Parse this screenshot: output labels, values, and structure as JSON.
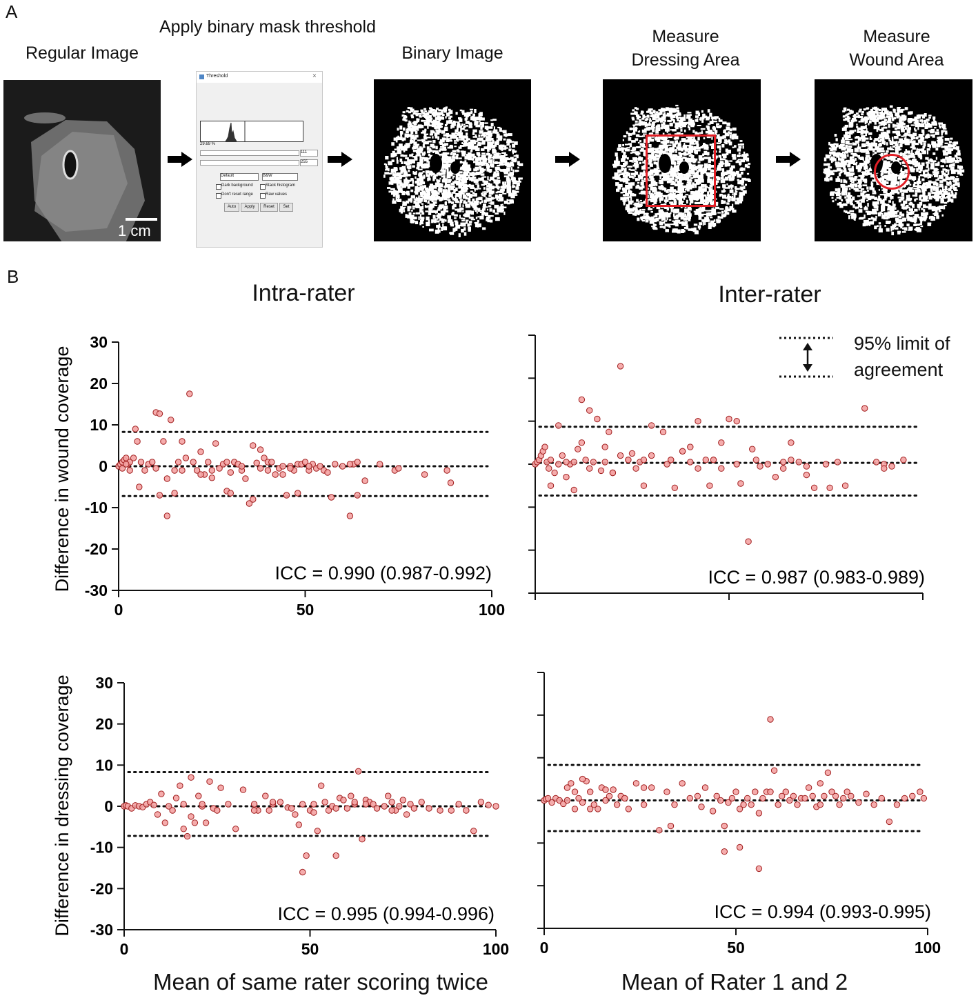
{
  "panel_a": {
    "letter": "A",
    "regular_image_title": "Regular Image",
    "threshold_title": "Apply binary mask threshold",
    "binary_image_title": "Binary Image",
    "dressing_title_line1": "Measure",
    "dressing_title_line2": "Dressing Area",
    "wound_title_line1": "Measure",
    "wound_title_line2": "Wound Area",
    "scale_bar_label": "1 cm",
    "threshold_dialog": {
      "window_title": "Threshold",
      "close_glyph": "×",
      "percent": "29.69 %",
      "min_value": "111",
      "max_value": "255",
      "method_select": "Default",
      "mode_select": "B&W",
      "check_dark_background": "Dark background",
      "check_stack_histogram": "Stack histogram",
      "check_dont_reset_range": "Don't reset range",
      "check_raw_values": "Raw values",
      "button_auto": "Auto",
      "button_apply": "Apply",
      "button_reset": "Reset",
      "button_set": "Set"
    },
    "colors": {
      "dressing_outline": "#e21f26",
      "wound_outline": "#e21f26"
    }
  },
  "panel_b": {
    "letter": "B",
    "col_left_title": "Intra-rater",
    "col_right_title": "Inter-rater",
    "ylabel_top": "Difference in wound coverage",
    "ylabel_bottom": "Difference in dressing coverage",
    "xlabel_left": "Mean of same rater scoring twice",
    "xlabel_right": "Mean of Rater 1 and 2",
    "legend_line1": "95% limit of",
    "legend_line2": "agreement",
    "colors": {
      "point_fill": "#f4a3a3",
      "point_stroke": "#a01d1d",
      "line": "#111111"
    }
  },
  "chart_data": [
    {
      "type": "scatter",
      "panel": "intra-rater wound",
      "ylabel": "Difference in wound coverage",
      "xlim": [
        0,
        100
      ],
      "ylim": [
        -30,
        30
      ],
      "xticks": [
        "0",
        "50",
        "100"
      ],
      "yticks": [
        "30",
        "20",
        "10",
        "0",
        "-10",
        "-20",
        "-30"
      ],
      "mean_line": 0,
      "upper_loa": 8.3,
      "lower_loa": -7.2,
      "annotation": "ICC = 0.990 (0.987-0.992)",
      "x": [
        0,
        0.5,
        1,
        1.5,
        2,
        2.5,
        3,
        1,
        2,
        3,
        4,
        4.5,
        5,
        5.5,
        6,
        7,
        8,
        9,
        10,
        11,
        12,
        13,
        14,
        15,
        16,
        17,
        18,
        19,
        20,
        21,
        22,
        23,
        24,
        25,
        26,
        27,
        28,
        29,
        30,
        31,
        32,
        33,
        34,
        35,
        36,
        37,
        38,
        39,
        40,
        41,
        42,
        43,
        44,
        45,
        46,
        47,
        48,
        49,
        50,
        51,
        52,
        53,
        54,
        55,
        57,
        58,
        60,
        62,
        63,
        64,
        66,
        70,
        74,
        75,
        82,
        88,
        89,
        10,
        11,
        13,
        17,
        15,
        22,
        25,
        29,
        30,
        33,
        38,
        40,
        36,
        44,
        46,
        48,
        51,
        56,
        62,
        64
      ],
      "y": [
        0,
        0.5,
        1,
        1.5,
        2,
        0.5,
        1,
        -0.5,
        0.5,
        -1,
        2,
        9,
        6,
        -5,
        1,
        -1,
        0.5,
        1,
        13,
        12.7,
        6,
        -3,
        11.2,
        -1,
        1,
        -1,
        2,
        17.5,
        1,
        -1,
        3.5,
        -2,
        1,
        -1,
        5.5,
        -0.5,
        0.5,
        -6,
        -6.5,
        1,
        0.5,
        -1,
        -3,
        -9,
        -8,
        0.8,
        4,
        2,
        1,
        1,
        -2,
        -0.5,
        0,
        -7,
        0,
        -1,
        0.5,
        0.5,
        1,
        -1,
        0.5,
        -0.5,
        0,
        -1,
        -7.5,
        0.5,
        0,
        -12,
        0.5,
        -7,
        -3.5,
        0.5,
        -1,
        -0.5,
        -2,
        -1,
        -4,
        -0.5,
        -7,
        -12,
        6,
        -6.5,
        -2,
        -2.8,
        1,
        -1.5,
        0,
        -0.5,
        -1,
        5,
        -2,
        -0.5,
        -6.5,
        0,
        -1.5,
        0.5,
        1
      ]
    },
    {
      "type": "scatter",
      "panel": "inter-rater wound",
      "xlim": [
        0,
        100
      ],
      "ylim": [
        -30,
        30
      ],
      "xticks": [],
      "yticks": [],
      "mean_line": 0.3,
      "upper_loa": 8.7,
      "lower_loa": -7.3,
      "annotation": "ICC = 0.987 (0.983-0.989)",
      "x": [
        0,
        0.5,
        1,
        1.5,
        2,
        2.5,
        3,
        3.5,
        4,
        5,
        6,
        7,
        8,
        9,
        10,
        11,
        12,
        13,
        14,
        15,
        16,
        18,
        19,
        20,
        22,
        24,
        25,
        27,
        28,
        30,
        33,
        35,
        36,
        38,
        40,
        42,
        44,
        45,
        46,
        48,
        50,
        52,
        53,
        55,
        57,
        60,
        62,
        64,
        66,
        68,
        70,
        72,
        75,
        78,
        80,
        85,
        88,
        90,
        92,
        95,
        6,
        10,
        12,
        14,
        18,
        20,
        22,
        26,
        28,
        30,
        35,
        38,
        42,
        46,
        48,
        56,
        58,
        64,
        66,
        70,
        76,
        90,
        4,
        8,
        17,
        24,
        34,
        40,
        52
      ],
      "y": [
        0,
        0.5,
        1,
        2,
        3,
        4,
        0.5,
        -1,
        1,
        -2,
        9,
        2,
        -3,
        0,
        -6,
        3.5,
        15,
        1,
        12.5,
        0.5,
        10.5,
        0.5,
        7.5,
        -2,
        22.8,
        1,
        2.5,
        0.5,
        -5,
        9,
        7.5,
        1,
        -5.5,
        3,
        4,
        10,
        1,
        -5,
        1,
        5,
        10.5,
        10,
        -4.5,
        -18,
        1,
        0,
        -3,
        -1,
        5,
        0.5,
        -2.5,
        -5.5,
        0,
        0.5,
        -5,
        13,
        0.5,
        0,
        -0.5,
        1,
        0,
        0.5,
        5,
        -1,
        4,
        -2,
        2,
        -1,
        1,
        2,
        1,
        3,
        -1,
        1,
        -1,
        3.5,
        -0.5,
        0.5,
        1,
        -0.5,
        -5.5,
        -1,
        -5,
        0.5,
        -1.5,
        1,
        0,
        0.5,
        0
      ]
    },
    {
      "type": "scatter",
      "panel": "intra-rater dressing",
      "ylabel": "Difference in dressing coverage",
      "xlabel": "Mean of same rater scoring twice",
      "xlim": [
        0,
        100
      ],
      "ylim": [
        -30,
        30
      ],
      "xticks": [
        "0",
        "50",
        "100"
      ],
      "yticks": [
        "30",
        "20",
        "10",
        "0",
        "-10",
        "-20",
        "-30"
      ],
      "mean_line": 0,
      "upper_loa": 8.3,
      "lower_loa": -7.2,
      "annotation": "ICC = 0.995 (0.994-0.996)",
      "x": [
        0,
        0.5,
        1,
        2,
        3,
        4,
        5,
        6,
        7,
        8,
        9,
        10,
        11,
        12,
        13,
        14,
        15,
        16,
        17,
        18,
        19,
        20,
        21,
        22,
        23,
        24,
        25,
        26,
        28,
        30,
        32,
        35,
        36,
        38,
        39,
        40,
        42,
        44,
        45,
        46,
        47,
        48,
        49,
        50,
        51,
        52,
        53,
        54,
        55,
        56,
        57,
        58,
        59,
        60,
        61,
        62,
        63,
        64,
        65,
        66,
        67,
        68,
        70,
        71,
        72,
        73,
        74,
        75,
        76,
        77,
        78,
        80,
        82,
        85,
        88,
        90,
        92,
        94,
        96,
        98,
        100,
        16,
        18,
        21,
        35,
        40,
        48,
        51,
        57,
        62,
        65,
        72
      ],
      "y": [
        0,
        0.2,
        0,
        -0.5,
        0.2,
        0,
        -0.2,
        0.5,
        1,
        0.3,
        -2,
        3,
        -4,
        0,
        -1,
        2,
        5,
        -5.5,
        -7.3,
        7,
        -4,
        2.5,
        0,
        -4,
        6,
        -0.5,
        -1,
        4.5,
        0.5,
        -5.5,
        4,
        0.5,
        -1,
        2.5,
        -1,
        0.5,
        1,
        -0.3,
        -0.5,
        -2,
        -4.5,
        -16,
        -12,
        -1,
        0.5,
        -6,
        5,
        1,
        -1,
        0,
        -12,
        2,
        1.5,
        -0.5,
        2.5,
        0.5,
        8.5,
        -8,
        1.5,
        1,
        0.5,
        -0.5,
        0,
        2.5,
        1,
        -1,
        0,
        1.5,
        -2,
        0.5,
        -0.5,
        1,
        -0.5,
        -1,
        -1,
        0.5,
        -1,
        -6,
        1,
        0.3,
        0,
        0.5,
        -2.5,
        0.5,
        -1,
        1,
        0.5,
        -1.5,
        -0.5,
        1,
        0.5,
        -1
      ]
    },
    {
      "type": "scatter",
      "panel": "inter-rater dressing",
      "xlabel": "Mean of Rater 1 and 2",
      "xlim": [
        0,
        100
      ],
      "ylim": [
        -30,
        30
      ],
      "xticks": [
        "0",
        "50",
        "100"
      ],
      "yticks": [],
      "mean_line": 0,
      "upper_loa": 8.3,
      "lower_loa": -7.2,
      "annotation": "ICC = 0.994 (0.993-0.995)",
      "x": [
        0,
        0.5,
        1,
        2,
        3,
        4,
        5,
        6,
        7,
        8,
        9,
        10,
        11,
        12,
        13,
        14,
        15,
        16,
        17,
        18,
        19,
        20,
        21,
        22,
        24,
        26,
        28,
        30,
        32,
        34,
        36,
        38,
        40,
        42,
        44,
        45,
        46,
        47,
        48,
        49,
        50,
        51,
        52,
        53,
        54,
        55,
        56,
        57,
        58,
        59,
        60,
        61,
        62,
        63,
        64,
        65,
        66,
        67,
        68,
        69,
        70,
        71,
        72,
        73,
        74,
        75,
        76,
        77,
        78,
        79,
        80,
        82,
        84,
        86,
        88,
        90,
        92,
        94,
        96,
        98,
        99,
        6,
        8,
        10,
        12,
        16,
        21,
        26,
        33,
        41,
        47,
        51,
        56,
        59,
        72
      ],
      "y": [
        0,
        0.3,
        0.5,
        -0.5,
        0.5,
        0,
        -0.8,
        3,
        4,
        2,
        0.5,
        -0.5,
        4.5,
        2,
        -1,
        -2,
        3,
        0,
        1,
        2.5,
        -1,
        1,
        0.5,
        -2,
        4,
        -1,
        3,
        -7,
        2,
        -1,
        4,
        0.5,
        1,
        3,
        -2.5,
        1,
        0,
        -6,
        -0.5,
        0.5,
        2,
        -2,
        -1,
        0.5,
        -1,
        2,
        -16,
        0.5,
        2,
        19,
        7,
        -1,
        1,
        2,
        0,
        1,
        -1,
        0.5,
        0.5,
        3,
        1,
        -1.5,
        4,
        1,
        6.5,
        2,
        1,
        -1,
        0.5,
        2,
        1,
        -0.5,
        1.5,
        -1,
        0.5,
        -5,
        -1,
        0.5,
        1,
        2,
        0.5,
        0,
        -2,
        5,
        -2,
        2.5,
        0.5,
        3,
        -6,
        -1.5,
        -12,
        -11,
        -3,
        2,
        -1
      ]
    }
  ]
}
